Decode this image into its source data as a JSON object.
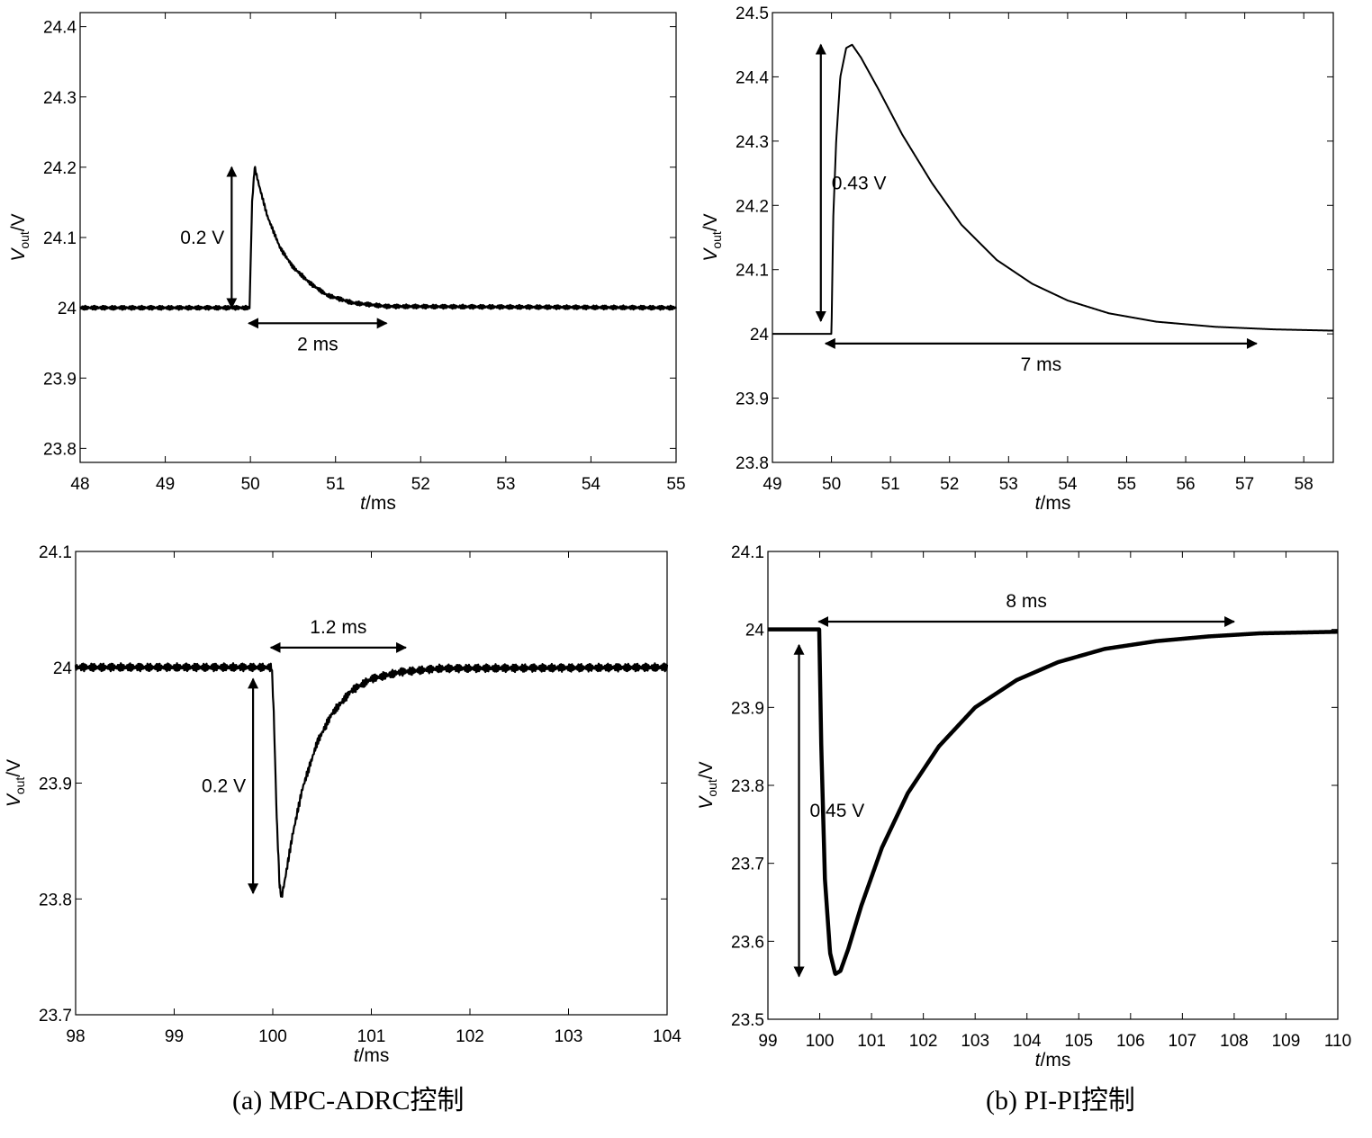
{
  "captions": {
    "left": "(a) MPC-ADRC控制",
    "right": "(b) PI-PI控制"
  },
  "chart_data": [
    {
      "id": "a-top",
      "type": "line",
      "title": "",
      "xlabel": "t/ms",
      "ylabel": "Vout/V",
      "xlim": [
        48,
        55
      ],
      "ylim": [
        23.78,
        24.42
      ],
      "xticks": [
        48,
        49,
        50,
        51,
        52,
        53,
        54,
        55
      ],
      "xticklabels": [
        "48",
        "49",
        "50",
        "51",
        "52",
        "53",
        "54",
        "55"
      ],
      "yticks": [
        23.8,
        23.9,
        24,
        24.1,
        24.2,
        24.3,
        24.4
      ],
      "yticklabels": [
        "23.8",
        "23.9",
        "24",
        "24.1",
        "24.2",
        "24.3",
        "24.4"
      ],
      "grid": false,
      "series": [
        {
          "name": "Vout",
          "noise": 0.003,
          "points": [
            [
              48,
              24.0
            ],
            [
              49.99,
              24.0
            ],
            [
              50.0,
              24.05
            ],
            [
              50.02,
              24.15
            ],
            [
              50.05,
              24.2
            ],
            [
              50.1,
              24.175
            ],
            [
              50.2,
              24.13
            ],
            [
              50.35,
              24.085
            ],
            [
              50.5,
              24.058
            ],
            [
              50.7,
              24.035
            ],
            [
              50.9,
              24.018
            ],
            [
              51.2,
              24.007
            ],
            [
              51.6,
              24.002
            ],
            [
              55,
              24.0
            ]
          ]
        }
      ],
      "annotations": [
        {
          "kind": "vertical",
          "label": "0.2 V",
          "x": 49.78,
          "y1": 24.0,
          "y2": 24.2,
          "label_side": "left"
        },
        {
          "kind": "horizontal",
          "label": "2 ms",
          "x1": 49.98,
          "x2": 51.6,
          "y": 23.978,
          "label_side": "below"
        }
      ]
    },
    {
      "id": "b-top",
      "type": "line",
      "title": "",
      "xlabel": "t/ms",
      "ylabel": "Vout/V",
      "xlim": [
        49,
        58.5
      ],
      "ylim": [
        23.8,
        24.5
      ],
      "xticks": [
        49,
        50,
        51,
        52,
        53,
        54,
        55,
        56,
        57,
        58
      ],
      "xticklabels": [
        "49",
        "50",
        "51",
        "52",
        "53",
        "54",
        "55",
        "56",
        "57",
        "58"
      ],
      "yticks": [
        23.8,
        23.9,
        24,
        24.1,
        24.2,
        24.3,
        24.4,
        24.5
      ],
      "yticklabels": [
        "23.8",
        "23.9",
        "24",
        "24.1",
        "24.2",
        "24.3",
        "24.4",
        "24.5"
      ],
      "grid": false,
      "series": [
        {
          "name": "Vout",
          "noise": 0.0,
          "points": [
            [
              49,
              24.0
            ],
            [
              50.0,
              24.0
            ],
            [
              50.03,
              24.18
            ],
            [
              50.08,
              24.3
            ],
            [
              50.15,
              24.4
            ],
            [
              50.25,
              24.445
            ],
            [
              50.35,
              24.45
            ],
            [
              50.5,
              24.43
            ],
            [
              50.8,
              24.38
            ],
            [
              51.2,
              24.31
            ],
            [
              51.7,
              24.235
            ],
            [
              52.2,
              24.17
            ],
            [
              52.8,
              24.115
            ],
            [
              53.4,
              24.078
            ],
            [
              54.0,
              24.052
            ],
            [
              54.7,
              24.032
            ],
            [
              55.5,
              24.019
            ],
            [
              56.5,
              24.011
            ],
            [
              57.5,
              24.007
            ],
            [
              58.5,
              24.005
            ]
          ]
        }
      ],
      "annotations": [
        {
          "kind": "vertical",
          "label": "0.43 V",
          "x": 49.82,
          "y1": 24.02,
          "y2": 24.45,
          "label_side": "right"
        },
        {
          "kind": "horizontal",
          "label": "7 ms",
          "x1": 49.9,
          "x2": 57.2,
          "y": 23.985,
          "label_side": "below"
        }
      ]
    },
    {
      "id": "a-bottom",
      "type": "line",
      "title": "",
      "xlabel": "t/ms",
      "ylabel": "Vout/V",
      "xlim": [
        98,
        104
      ],
      "ylim": [
        23.7,
        24.1
      ],
      "xticks": [
        98,
        99,
        100,
        101,
        102,
        103,
        104
      ],
      "xticklabels": [
        "98",
        "99",
        "100",
        "101",
        "102",
        "103",
        "104"
      ],
      "yticks": [
        23.7,
        23.8,
        23.9,
        24,
        24.1
      ],
      "yticklabels": [
        "23.7",
        "23.8",
        "23.9",
        "24",
        "24.1"
      ],
      "grid": false,
      "series": [
        {
          "name": "Vout",
          "noise": 0.0035,
          "points": [
            [
              98,
              24.0
            ],
            [
              99.99,
              24.0
            ],
            [
              100.01,
              23.96
            ],
            [
              100.04,
              23.87
            ],
            [
              100.07,
              23.81
            ],
            [
              100.09,
              23.802
            ],
            [
              100.12,
              23.815
            ],
            [
              100.2,
              23.855
            ],
            [
              100.3,
              23.895
            ],
            [
              100.45,
              23.935
            ],
            [
              100.6,
              23.96
            ],
            [
              100.8,
              23.98
            ],
            [
              101.0,
              23.99
            ],
            [
              101.3,
              23.996
            ],
            [
              101.7,
              23.999
            ],
            [
              104,
              24.0
            ]
          ]
        }
      ],
      "annotations": [
        {
          "kind": "vertical",
          "label": "0.2 V",
          "x": 99.8,
          "y1": 23.99,
          "y2": 23.805,
          "label_side": "left"
        },
        {
          "kind": "horizontal",
          "label": "1.2 ms",
          "x1": 99.98,
          "x2": 101.35,
          "y": 24.017,
          "label_side": "above"
        }
      ]
    },
    {
      "id": "b-bottom",
      "type": "line",
      "title": "",
      "xlabel": "t/ms",
      "ylabel": "Vout/V",
      "xlim": [
        99,
        110
      ],
      "ylim": [
        23.5,
        24.1
      ],
      "xticks": [
        99,
        100,
        101,
        102,
        103,
        104,
        105,
        106,
        107,
        108,
        109,
        110
      ],
      "xticklabels": [
        "99",
        "100",
        "101",
        "102",
        "103",
        "104",
        "105",
        "106",
        "107",
        "108",
        "109",
        "110"
      ],
      "yticks": [
        23.5,
        23.6,
        23.7,
        23.8,
        23.9,
        24,
        24.1
      ],
      "yticklabels": [
        "23.5",
        "23.6",
        "23.7",
        "23.8",
        "23.9",
        "24",
        "24.1"
      ],
      "grid": false,
      "series": [
        {
          "name": "Vout",
          "noise": 0.0,
          "points": [
            [
              99,
              24.0
            ],
            [
              99.99,
              24.0
            ],
            [
              100.03,
              23.85
            ],
            [
              100.1,
              23.68
            ],
            [
              100.2,
              23.585
            ],
            [
              100.3,
              23.558
            ],
            [
              100.4,
              23.562
            ],
            [
              100.55,
              23.59
            ],
            [
              100.8,
              23.645
            ],
            [
              101.2,
              23.72
            ],
            [
              101.7,
              23.79
            ],
            [
              102.3,
              23.85
            ],
            [
              103.0,
              23.9
            ],
            [
              103.8,
              23.935
            ],
            [
              104.6,
              23.958
            ],
            [
              105.5,
              23.975
            ],
            [
              106.5,
              23.985
            ],
            [
              107.5,
              23.991
            ],
            [
              108.5,
              23.995
            ],
            [
              110,
              23.997
            ]
          ]
        }
      ],
      "annotations": [
        {
          "kind": "vertical",
          "label": "0.45 V",
          "x": 99.6,
          "y1": 23.98,
          "y2": 23.555,
          "label_side": "right"
        },
        {
          "kind": "horizontal",
          "label": "8 ms",
          "x1": 99.98,
          "x2": 108.0,
          "y": 24.01,
          "label_side": "above"
        }
      ]
    }
  ]
}
